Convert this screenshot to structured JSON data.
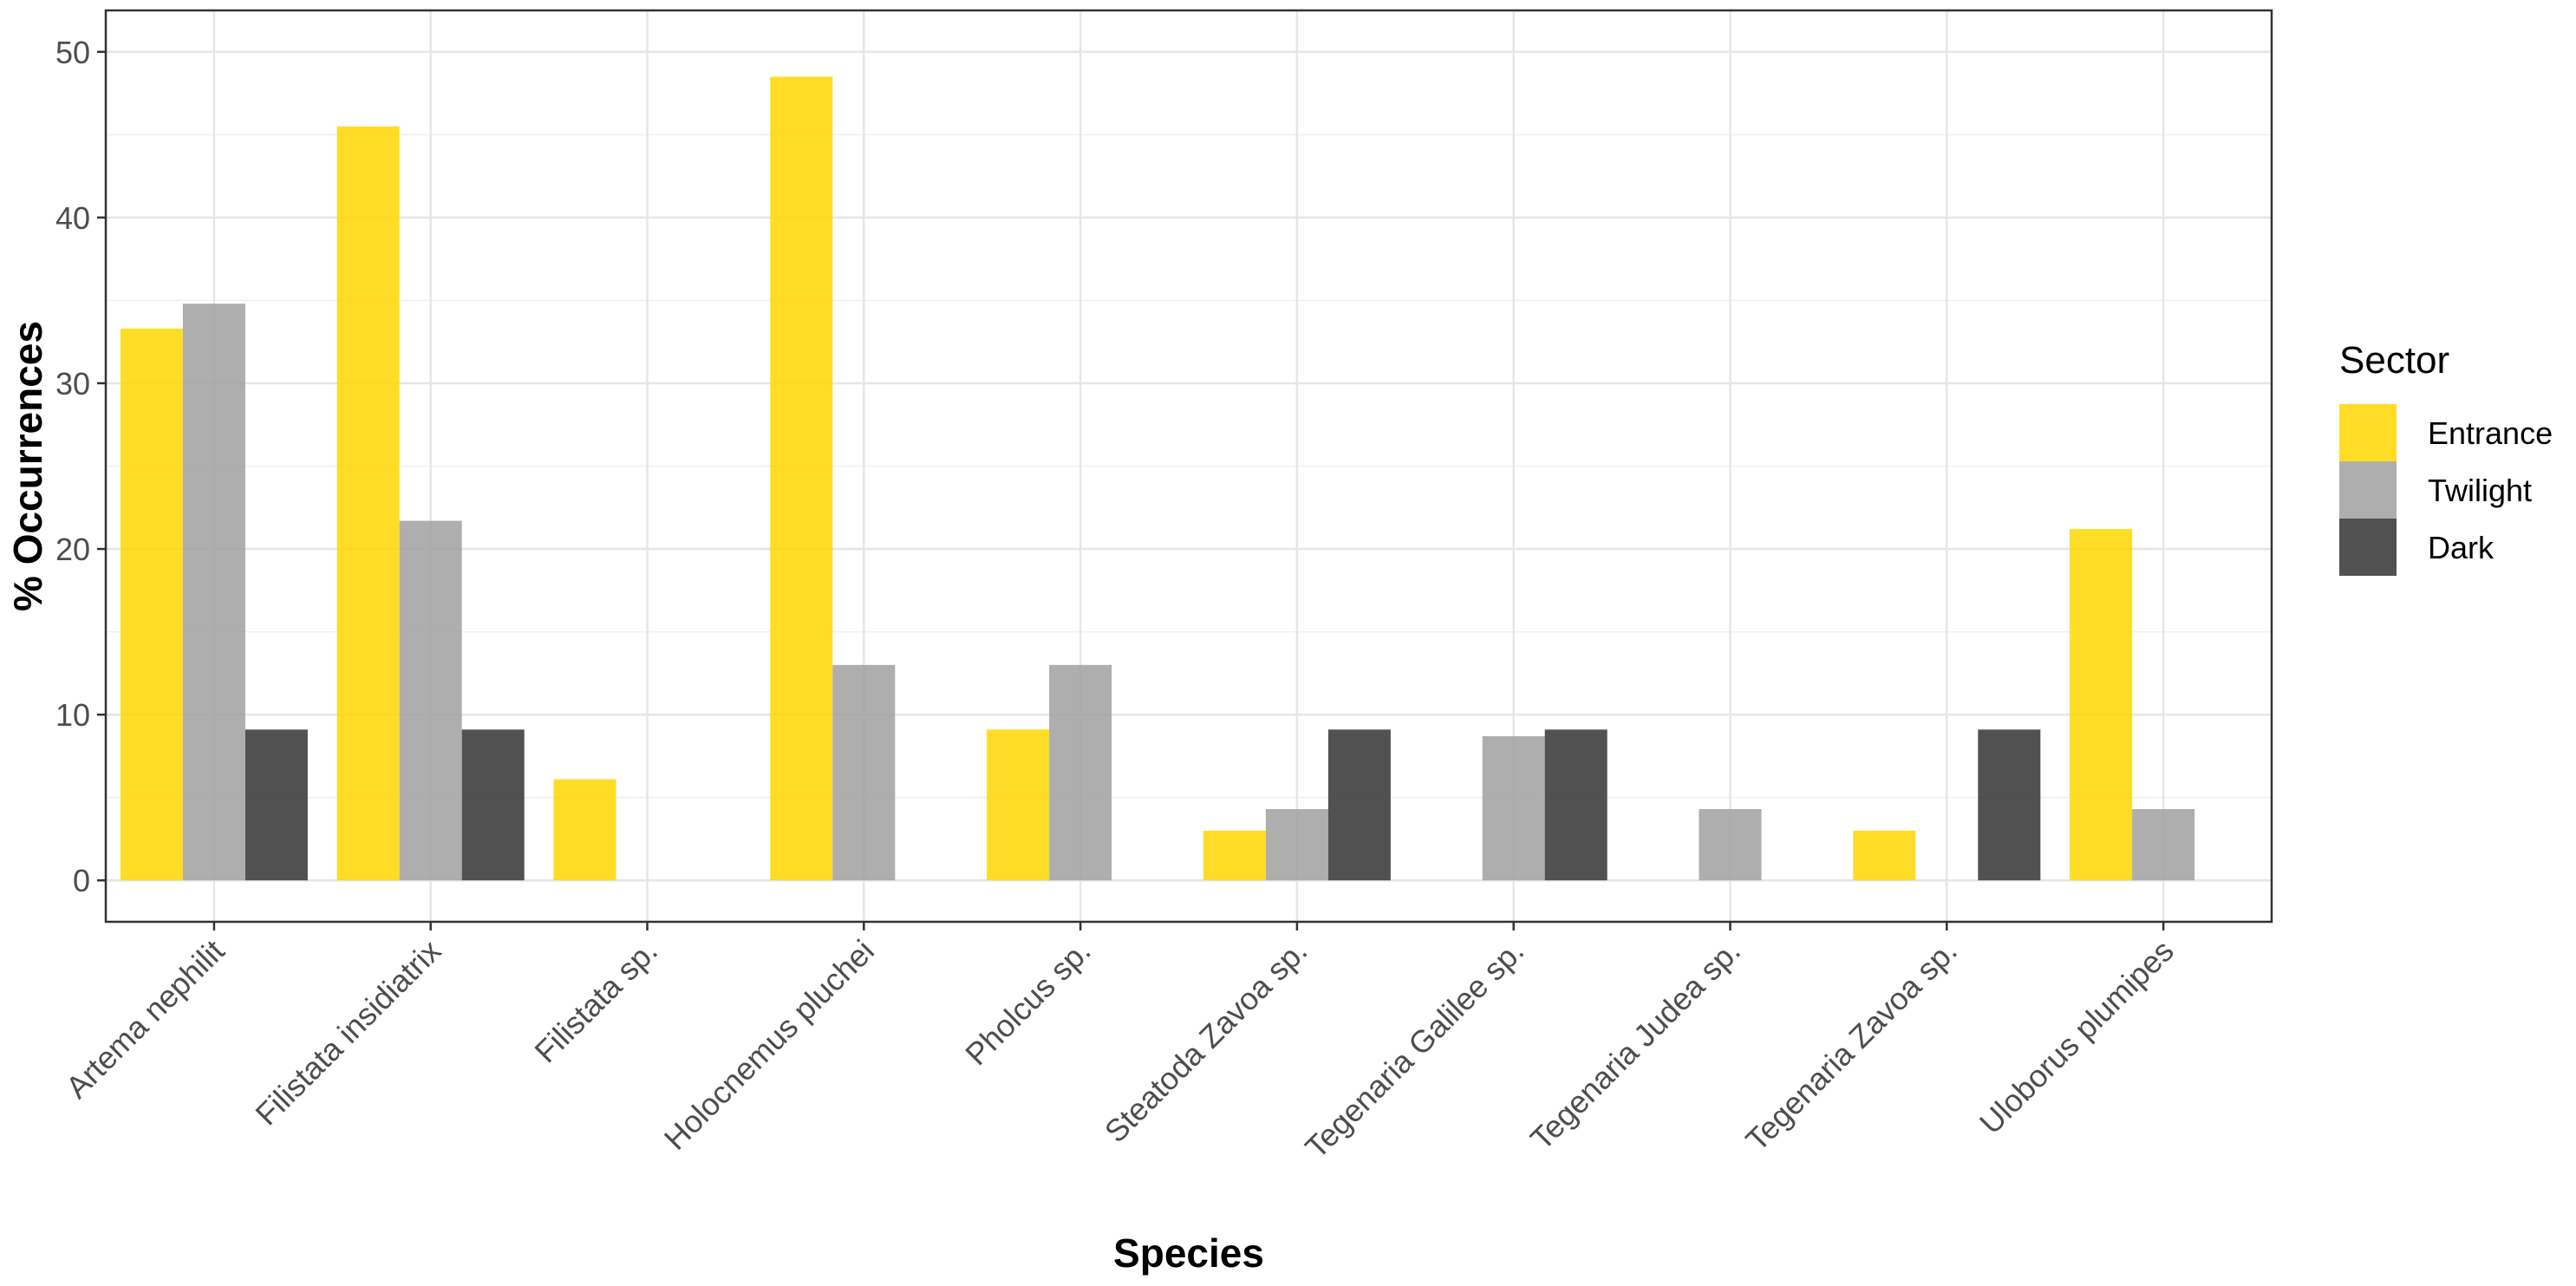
{
  "chart_data": {
    "type": "bar",
    "title": "",
    "xlabel": "Species",
    "ylabel": "% Occurrences",
    "ylim": [
      -2.5,
      52.5
    ],
    "yticks": [
      0,
      10,
      20,
      30,
      40,
      50
    ],
    "grid": true,
    "legend": {
      "title": "Sector",
      "placement": "right"
    },
    "categories": [
      "Artema nephilit",
      "Filistata insidiatrix",
      "Filistata sp.",
      "Holocnemus pluchei",
      "Pholcus sp.",
      "Steatoda Zavoa sp.",
      "Tegenaria Galilee sp.",
      "Tegenaria Judea sp.",
      "Tegenaria Zavoa sp.",
      "Uloborus plumipes"
    ],
    "series": [
      {
        "name": "Entrance",
        "color": "#FFD700",
        "values": [
          33.3,
          45.5,
          6.1,
          48.5,
          9.1,
          3.0,
          null,
          null,
          3.0,
          21.2
        ]
      },
      {
        "name": "Twilight",
        "color": "#A0A0A0",
        "values": [
          34.8,
          21.7,
          null,
          13.0,
          13.0,
          4.3,
          8.7,
          4.3,
          null,
          4.3
        ]
      },
      {
        "name": "Dark",
        "color": "#333333",
        "values": [
          9.1,
          9.1,
          null,
          null,
          null,
          9.1,
          9.1,
          null,
          9.1,
          null
        ]
      }
    ]
  }
}
